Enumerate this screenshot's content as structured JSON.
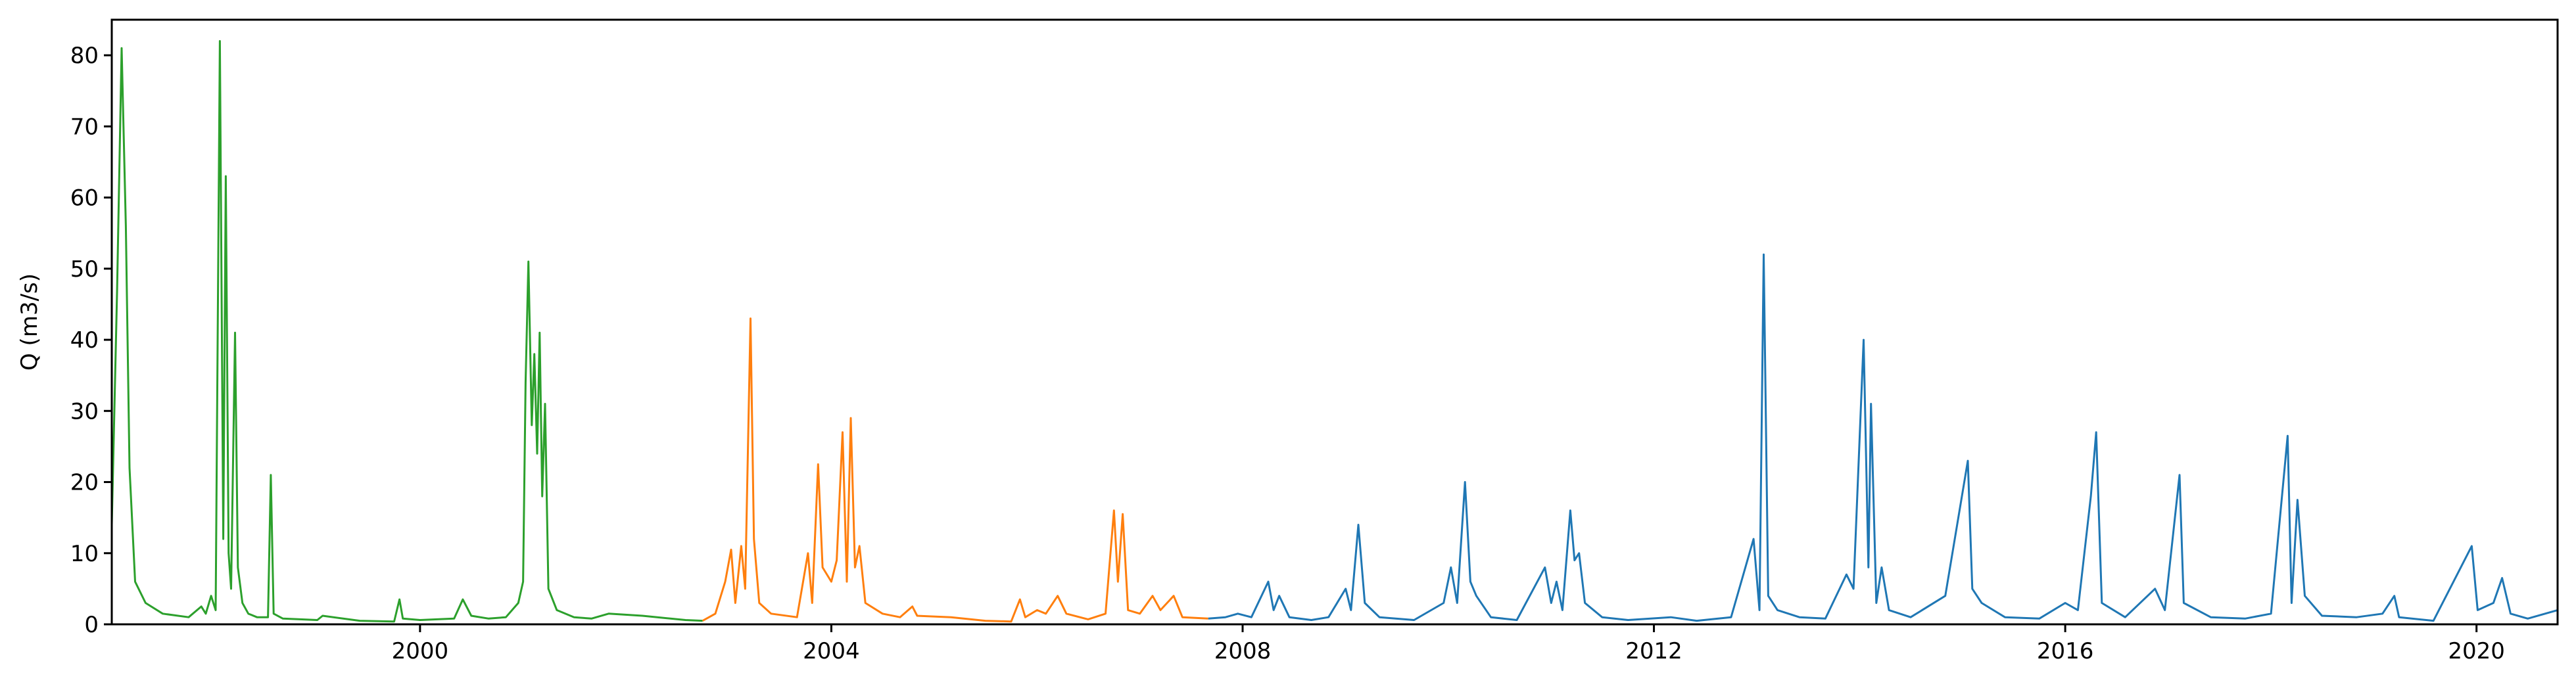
{
  "chart_data": {
    "type": "line",
    "title": "",
    "xlabel": "",
    "ylabel": "Q (m3/s)",
    "xlim": [
      "1997-01-01",
      "2020-10-15"
    ],
    "ylim": [
      0,
      85
    ],
    "grid": false,
    "legend": "none",
    "x_ticks": [
      "2000-01-01",
      "2004-01-01",
      "2008-01-01",
      "2012-01-01",
      "2016-01-01",
      "2020-01-01"
    ],
    "x_tick_labels": [
      "2000",
      "2004",
      "2008",
      "2012",
      "2016",
      "2020"
    ],
    "y_ticks": [
      0,
      10,
      20,
      30,
      40,
      50,
      60,
      70,
      80
    ],
    "y_tick_labels": [
      "0",
      "10",
      "20",
      "30",
      "40",
      "50",
      "60",
      "70",
      "80"
    ],
    "series": [
      {
        "color": "#2ca02c",
        "points": [
          [
            "1997-01-01",
            14
          ],
          [
            "1997-01-20",
            47
          ],
          [
            "1997-02-05",
            81
          ],
          [
            "1997-02-20",
            56
          ],
          [
            "1997-03-05",
            22
          ],
          [
            "1997-03-25",
            6
          ],
          [
            "1997-05-01",
            3
          ],
          [
            "1997-07-01",
            1.5
          ],
          [
            "1997-10-01",
            1.0
          ],
          [
            "1997-11-15",
            2.5
          ],
          [
            "1997-12-01",
            1.5
          ],
          [
            "1997-12-20",
            4
          ],
          [
            "1998-01-05",
            2
          ],
          [
            "1998-01-20",
            82
          ],
          [
            "1998-02-01",
            12
          ],
          [
            "1998-02-10",
            63
          ],
          [
            "1998-02-20",
            10
          ],
          [
            "1998-03-01",
            5
          ],
          [
            "1998-03-15",
            41
          ],
          [
            "1998-03-25",
            8
          ],
          [
            "1998-04-10",
            3
          ],
          [
            "1998-05-01",
            1.5
          ],
          [
            "1998-06-01",
            1
          ],
          [
            "1998-07-10",
            1
          ],
          [
            "1998-07-20",
            21
          ],
          [
            "1998-07-30",
            1.5
          ],
          [
            "1998-09-01",
            0.8
          ],
          [
            "1999-01-01",
            0.6
          ],
          [
            "1999-01-20",
            1.2
          ],
          [
            "1999-06-01",
            0.5
          ],
          [
            "1999-10-01",
            0.4
          ],
          [
            "1999-10-20",
            3.5
          ],
          [
            "1999-11-01",
            0.8
          ],
          [
            "2000-01-01",
            0.6
          ],
          [
            "2000-05-01",
            0.8
          ],
          [
            "2000-06-01",
            3.5
          ],
          [
            "2000-07-01",
            1.2
          ],
          [
            "2000-09-01",
            0.8
          ],
          [
            "2000-11-01",
            1.0
          ],
          [
            "2000-12-15",
            3
          ],
          [
            "2001-01-01",
            6
          ],
          [
            "2001-01-10",
            34
          ],
          [
            "2001-01-20",
            51
          ],
          [
            "2001-02-01",
            28
          ],
          [
            "2001-02-10",
            38
          ],
          [
            "2001-02-20",
            24
          ],
          [
            "2001-03-01",
            41
          ],
          [
            "2001-03-10",
            18
          ],
          [
            "2001-03-20",
            31
          ],
          [
            "2001-04-01",
            5
          ],
          [
            "2001-05-01",
            2
          ],
          [
            "2001-07-01",
            1
          ],
          [
            "2001-09-01",
            0.8
          ],
          [
            "2001-11-01",
            1.5
          ],
          [
            "2002-03-01",
            1.2
          ],
          [
            "2002-08-01",
            0.6
          ],
          [
            "2002-10-01",
            0.5
          ]
        ]
      },
      {
        "color": "#ff7f0e",
        "points": [
          [
            "2002-10-01",
            0.5
          ],
          [
            "2002-11-15",
            1.5
          ],
          [
            "2002-12-20",
            6
          ],
          [
            "2003-01-10",
            10.5
          ],
          [
            "2003-01-25",
            3
          ],
          [
            "2003-02-15",
            11
          ],
          [
            "2003-03-01",
            5
          ],
          [
            "2003-03-20",
            43
          ],
          [
            "2003-04-01",
            12
          ],
          [
            "2003-04-20",
            3
          ],
          [
            "2003-06-01",
            1.5
          ],
          [
            "2003-09-01",
            1
          ],
          [
            "2003-10-10",
            10
          ],
          [
            "2003-10-25",
            3
          ],
          [
            "2003-11-15",
            22.5
          ],
          [
            "2003-12-01",
            8
          ],
          [
            "2004-01-01",
            6
          ],
          [
            "2004-01-20",
            9
          ],
          [
            "2004-02-10",
            27
          ],
          [
            "2004-02-25",
            6
          ],
          [
            "2004-03-10",
            29
          ],
          [
            "2004-03-25",
            8
          ],
          [
            "2004-04-10",
            11
          ],
          [
            "2004-05-01",
            3
          ],
          [
            "2004-07-01",
            1.5
          ],
          [
            "2004-09-01",
            1
          ],
          [
            "2004-10-15",
            2.5
          ],
          [
            "2004-11-01",
            1.2
          ],
          [
            "2005-03-01",
            1
          ],
          [
            "2005-07-01",
            0.5
          ],
          [
            "2005-10-01",
            0.4
          ],
          [
            "2005-11-01",
            3.5
          ],
          [
            "2005-11-20",
            1
          ],
          [
            "2006-01-01",
            2
          ],
          [
            "2006-02-01",
            1.5
          ],
          [
            "2006-03-15",
            4
          ],
          [
            "2006-04-15",
            1.5
          ],
          [
            "2006-07-01",
            0.7
          ],
          [
            "2006-09-01",
            1.5
          ],
          [
            "2006-10-01",
            16
          ],
          [
            "2006-10-15",
            6
          ],
          [
            "2006-11-01",
            15.5
          ],
          [
            "2006-11-20",
            2
          ],
          [
            "2007-01-01",
            1.5
          ],
          [
            "2007-02-15",
            4
          ],
          [
            "2007-03-15",
            2
          ],
          [
            "2007-05-01",
            4
          ],
          [
            "2007-06-01",
            1
          ],
          [
            "2007-09-01",
            0.8
          ]
        ]
      },
      {
        "color": "#1f77b4",
        "points": [
          [
            "2007-09-01",
            0.8
          ],
          [
            "2007-11-01",
            1
          ],
          [
            "2007-12-15",
            1.5
          ],
          [
            "2008-02-01",
            1
          ],
          [
            "2008-04-01",
            6
          ],
          [
            "2008-04-20",
            2
          ],
          [
            "2008-05-10",
            4
          ],
          [
            "2008-06-15",
            1
          ],
          [
            "2008-09-01",
            0.6
          ],
          [
            "2008-11-01",
            1
          ],
          [
            "2009-01-01",
            5
          ],
          [
            "2009-01-20",
            2
          ],
          [
            "2009-02-15",
            14
          ],
          [
            "2009-03-10",
            3
          ],
          [
            "2009-05-01",
            1
          ],
          [
            "2009-09-01",
            0.6
          ],
          [
            "2009-12-15",
            3
          ],
          [
            "2010-01-10",
            8
          ],
          [
            "2010-02-01",
            3
          ],
          [
            "2010-03-01",
            20
          ],
          [
            "2010-03-20",
            6
          ],
          [
            "2010-04-10",
            4
          ],
          [
            "2010-06-01",
            1
          ],
          [
            "2010-09-01",
            0.6
          ],
          [
            "2010-12-10",
            8
          ],
          [
            "2011-01-01",
            3
          ],
          [
            "2011-01-20",
            6
          ],
          [
            "2011-02-10",
            2
          ],
          [
            "2011-03-10",
            16
          ],
          [
            "2011-03-25",
            9
          ],
          [
            "2011-04-10",
            10
          ],
          [
            "2011-05-01",
            3
          ],
          [
            "2011-07-01",
            1
          ],
          [
            "2011-10-01",
            0.6
          ],
          [
            "2012-03-01",
            1
          ],
          [
            "2012-06-01",
            0.5
          ],
          [
            "2012-10-01",
            1
          ],
          [
            "2012-12-20",
            12
          ],
          [
            "2013-01-10",
            2
          ],
          [
            "2013-01-25",
            52
          ],
          [
            "2013-02-10",
            4
          ],
          [
            "2013-03-15",
            2
          ],
          [
            "2013-06-01",
            1
          ],
          [
            "2013-09-01",
            0.8
          ],
          [
            "2013-11-15",
            7
          ],
          [
            "2013-12-10",
            5
          ],
          [
            "2014-01-15",
            40
          ],
          [
            "2014-02-01",
            8
          ],
          [
            "2014-02-10",
            31
          ],
          [
            "2014-03-01",
            3
          ],
          [
            "2014-03-20",
            8
          ],
          [
            "2014-04-15",
            2
          ],
          [
            "2014-07-01",
            1
          ],
          [
            "2014-11-01",
            4
          ],
          [
            "2015-01-20",
            23
          ],
          [
            "2015-02-05",
            5
          ],
          [
            "2015-03-10",
            3
          ],
          [
            "2015-06-01",
            1
          ],
          [
            "2015-10-01",
            0.8
          ],
          [
            "2016-01-01",
            3
          ],
          [
            "2016-02-15",
            2
          ],
          [
            "2016-04-01",
            18
          ],
          [
            "2016-04-20",
            27
          ],
          [
            "2016-05-10",
            3
          ],
          [
            "2016-08-01",
            1
          ],
          [
            "2016-11-15",
            5
          ],
          [
            "2016-12-20",
            2
          ],
          [
            "2017-02-10",
            21
          ],
          [
            "2017-02-25",
            3
          ],
          [
            "2017-06-01",
            1
          ],
          [
            "2017-10-01",
            0.8
          ],
          [
            "2018-01-01",
            1.5
          ],
          [
            "2018-03-01",
            26.5
          ],
          [
            "2018-03-15",
            3
          ],
          [
            "2018-04-05",
            17.5
          ],
          [
            "2018-05-01",
            4
          ],
          [
            "2018-07-01",
            1.2
          ],
          [
            "2018-11-01",
            1
          ],
          [
            "2019-02-01",
            1.5
          ],
          [
            "2019-03-15",
            4
          ],
          [
            "2019-04-01",
            1
          ],
          [
            "2019-08-01",
            0.5
          ],
          [
            "2019-12-15",
            11
          ],
          [
            "2020-01-05",
            2
          ],
          [
            "2020-03-01",
            3
          ],
          [
            "2020-04-01",
            6.5
          ],
          [
            "2020-05-01",
            1.5
          ],
          [
            "2020-07-01",
            0.8
          ],
          [
            "2020-10-15",
            2
          ]
        ]
      }
    ]
  }
}
